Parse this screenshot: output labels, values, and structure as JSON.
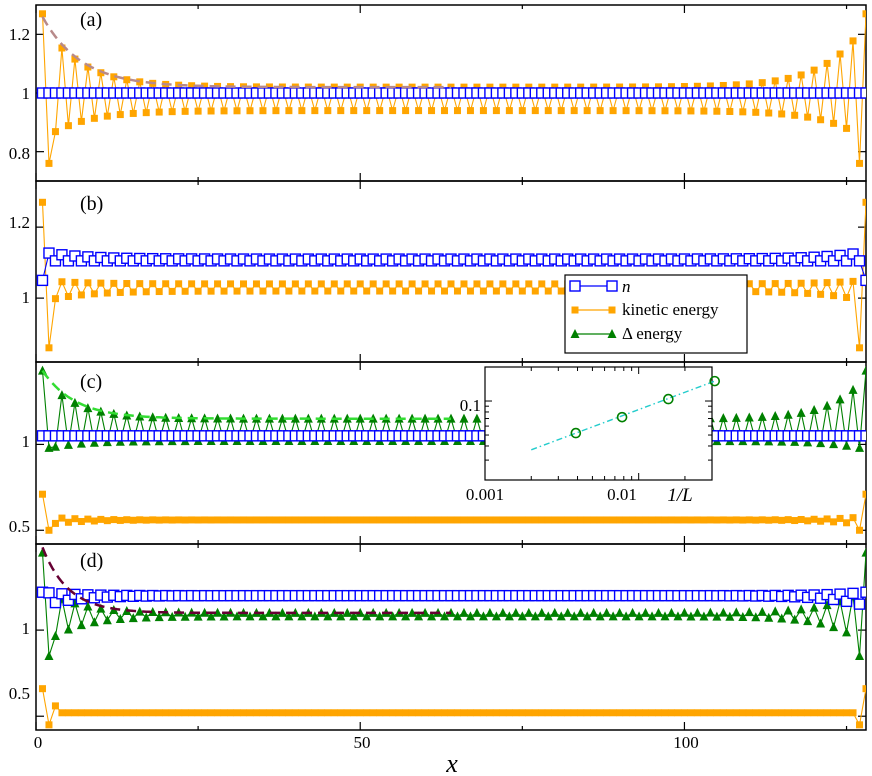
{
  "chart_data": {
    "type": "line",
    "xlabel": "x",
    "xlim": [
      0,
      128
    ],
    "x_ticks": [
      "0",
      "50",
      "100"
    ],
    "legend": {
      "panel": "b",
      "placement": "bottom-right",
      "entries": [
        "n",
        "kinetic energy",
        "Δ energy"
      ]
    },
    "colors": {
      "n": "#0000ff",
      "kinetic": "#ffa500",
      "delta": "#008000",
      "fit_a": "#b88a8a",
      "fit_c": "#33dd33",
      "fit_d": "#660033",
      "inset_fit": "#22cccc"
    },
    "panels": [
      {
        "label": "(a)",
        "ylim": [
          0.7,
          1.3
        ],
        "y_ticks": [
          "0.8",
          "1",
          "1.2"
        ],
        "series": [
          {
            "name": "n",
            "marker": "open-square",
            "color": "#0000ff",
            "even": 1.0,
            "odd": 1.0,
            "boundary": []
          },
          {
            "name": "kinetic energy",
            "marker": "filled-square",
            "color": "#ffa500",
            "even": 1.02,
            "odd": 0.94,
            "amp_even": 0.22,
            "amp_odd": -0.1,
            "tau": 6,
            "boundary": [
              [
                1,
                1.27
              ],
              [
                2,
                0.76
              ],
              [
                127,
                0.76
              ],
              [
                128,
                1.27
              ]
            ]
          }
        ],
        "fit": {
          "color": "#b88a8a",
          "from": 1,
          "to": 64,
          "base": 1.02,
          "amp": 0.24,
          "tau": 6
        }
      },
      {
        "label": "(b)",
        "ylim": [
          0.82,
          1.33
        ],
        "y_ticks": [
          "1",
          "1.2"
        ],
        "series": [
          {
            "name": "n",
            "marker": "open-square",
            "color": "#0000ff",
            "even": 1.11,
            "odd": 1.105,
            "amp_even": 0.02,
            "amp_odd": 0.0,
            "tau": 6,
            "boundary": [
              [
                1,
                1.05
              ],
              [
                128,
                1.05
              ]
            ]
          },
          {
            "name": "kinetic energy",
            "marker": "filled-square",
            "color": "#ffa500",
            "even": 1.04,
            "odd": 1.02,
            "amp_even": 0.01,
            "amp_odd": -0.03,
            "tau": 6,
            "boundary": [
              [
                1,
                1.27
              ],
              [
                2,
                0.86
              ],
              [
                127,
                0.86
              ],
              [
                128,
                1.27
              ]
            ]
          }
        ]
      },
      {
        "label": "(c)",
        "ylim": [
          0.42,
          1.48
        ],
        "y_ticks": [
          "0.5",
          "1"
        ],
        "series": [
          {
            "name": "n",
            "marker": "open-square",
            "color": "#0000ff",
            "even": 1.05,
            "odd": 1.05,
            "boundary": []
          },
          {
            "name": "kinetic energy",
            "marker": "filled-square",
            "color": "#ffa500",
            "even": 0.56,
            "odd": 0.56,
            "amp_even": 0.02,
            "amp_odd": -0.03,
            "tau": 5,
            "boundary": [
              [
                1,
                0.71
              ],
              [
                2,
                0.5
              ],
              [
                127,
                0.5
              ],
              [
                128,
                0.71
              ]
            ]
          },
          {
            "name": "Δ energy",
            "marker": "filled-triangle",
            "color": "#008000",
            "even": 1.15,
            "odd": 1.02,
            "amp_even": 0.25,
            "amp_odd": -0.05,
            "tau": 5,
            "boundary": [
              [
                1,
                1.43
              ],
              [
                2,
                0.98
              ],
              [
                127,
                0.98
              ],
              [
                128,
                1.43
              ]
            ]
          }
        ],
        "fit": {
          "color": "#33dd33",
          "from": 1,
          "to": 64,
          "base": 1.15,
          "amp": 0.28,
          "tau": 5
        }
      },
      {
        "label": "(d)",
        "ylim": [
          0.42,
          1.5
        ],
        "y_ticks": [
          "0.5",
          "1"
        ],
        "series": [
          {
            "name": "n",
            "marker": "open-square",
            "color": "#0000ff",
            "even": 1.2,
            "odd": 1.2,
            "amp_even": 0.02,
            "amp_odd": -0.06,
            "tau": 5,
            "boundary": [
              [
                1,
                1.22
              ],
              [
                128,
                1.22
              ]
            ]
          },
          {
            "name": "kinetic energy",
            "marker": "filled-square",
            "color": "#ffa500",
            "even": 0.52,
            "odd": 0.52,
            "boundary": [
              [
                1,
                0.66
              ],
              [
                2,
                0.45
              ],
              [
                3,
                0.56
              ],
              [
                127,
                0.45
              ],
              [
                128,
                0.66
              ]
            ]
          },
          {
            "name": "Δ energy",
            "marker": "filled-triangle",
            "color": "#008000",
            "even": 1.1,
            "odd": 1.08,
            "amp_even": 0.15,
            "amp_odd": -0.17,
            "tau": 5,
            "boundary": [
              [
                1,
                1.45
              ],
              [
                2,
                0.85
              ],
              [
                127,
                0.85
              ],
              [
                128,
                1.45
              ]
            ]
          }
        ],
        "fit": {
          "color": "#660033",
          "from": 1,
          "to": 64,
          "base": 1.1,
          "amp": 0.38,
          "tau": 4
        }
      }
    ],
    "inset": {
      "panel": "c",
      "scale": "log-log",
      "xlabel": "1/L",
      "xlim": [
        0.001,
        0.03
      ],
      "ylim": [
        0.02,
        0.2
      ],
      "x_ticks": [
        "0.001",
        "0.01"
      ],
      "y_ticks": [
        "0.1"
      ],
      "points": [
        [
          0.0039,
          0.052
        ],
        [
          0.0078,
          0.072
        ],
        [
          0.0156,
          0.104
        ],
        [
          0.03125,
          0.15
        ]
      ],
      "fit": [
        [
          0.002,
          0.037
        ],
        [
          0.03125,
          0.15
        ]
      ]
    }
  }
}
